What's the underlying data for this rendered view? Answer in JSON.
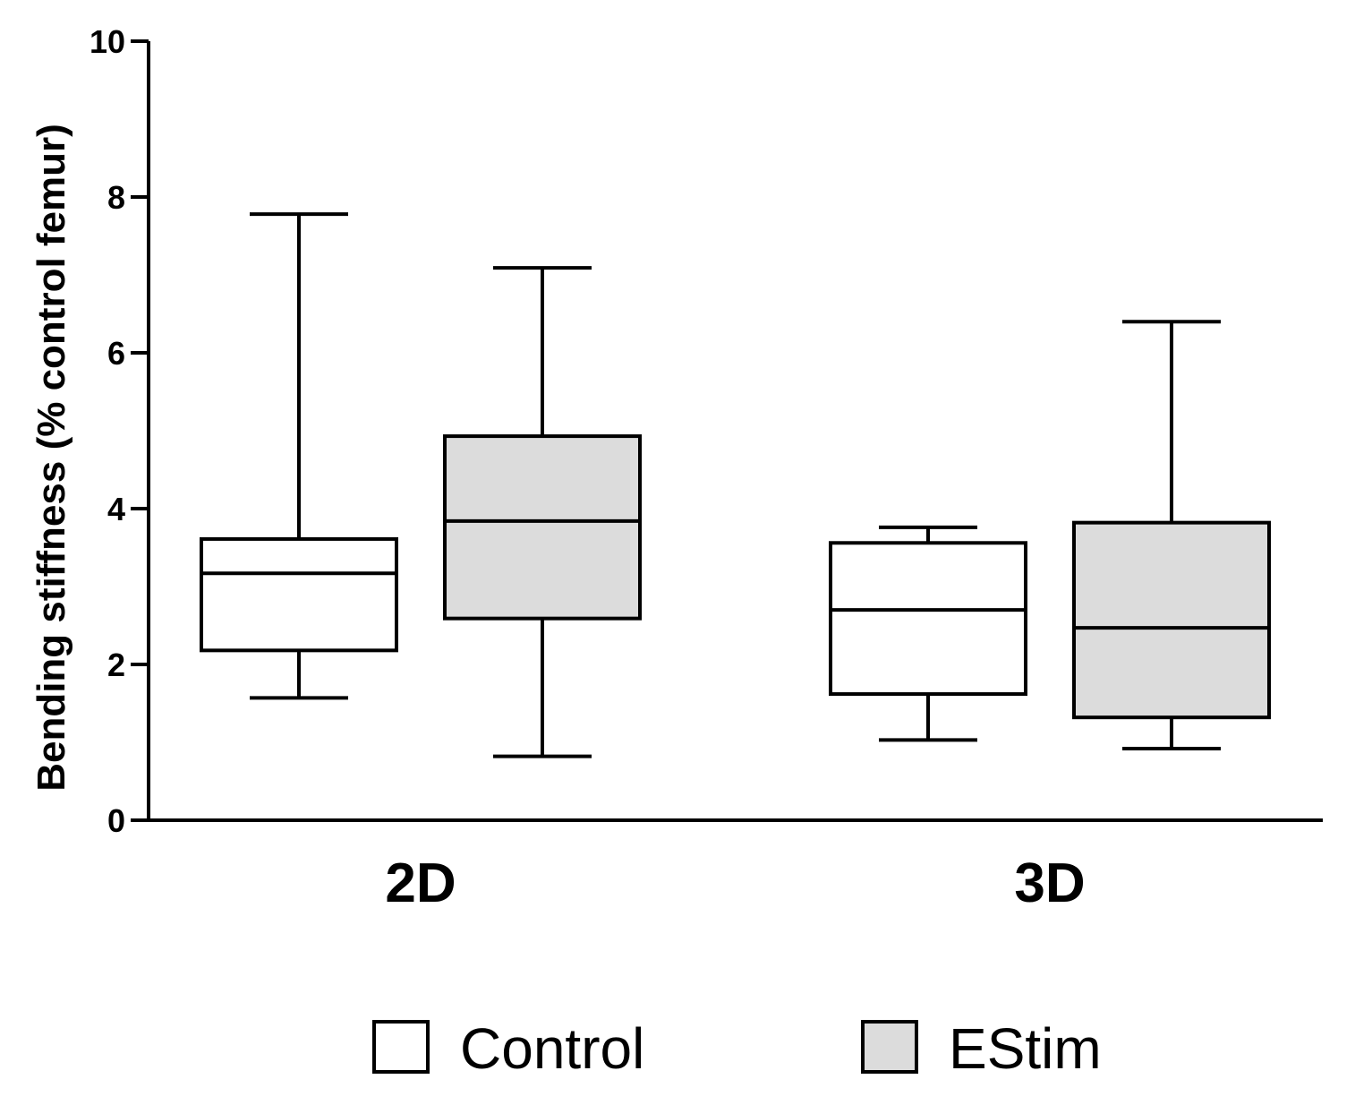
{
  "chart_data": {
    "type": "boxplot",
    "ylabel": "Bending stiffness (% control femur)",
    "xlabel": "",
    "ylim": [
      0,
      10
    ],
    "yticks": [
      0,
      2,
      4,
      6,
      8,
      10
    ],
    "categories": [
      "2D",
      "3D"
    ],
    "legend_position": "bottom",
    "series": [
      {
        "name": "Control",
        "color": "#ffffff",
        "boxes": [
          {
            "category": "2D",
            "min": 1.57,
            "q1": 2.18,
            "median": 3.17,
            "q3": 3.61,
            "max": 7.78
          },
          {
            "category": "3D",
            "min": 1.03,
            "q1": 1.62,
            "median": 2.7,
            "q3": 3.56,
            "max": 3.76
          }
        ]
      },
      {
        "name": "EStim",
        "color": "#dcdcdc",
        "boxes": [
          {
            "category": "2D",
            "min": 0.82,
            "q1": 2.59,
            "median": 3.84,
            "q3": 4.93,
            "max": 7.09
          },
          {
            "category": "3D",
            "min": 0.92,
            "q1": 1.32,
            "median": 2.47,
            "q3": 3.82,
            "max": 6.4
          }
        ]
      }
    ]
  }
}
